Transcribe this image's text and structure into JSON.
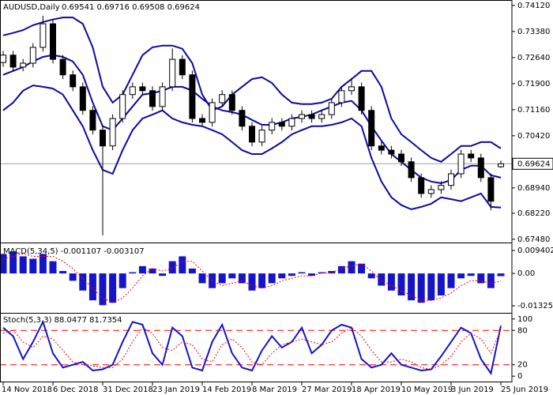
{
  "chart_data": [
    {
      "type": "candlestick",
      "title": "AUDUSD,Daily",
      "subtitle": "0.69541 0.69716 0.69508 0.69624",
      "categories": [
        "14 Nov 2018",
        null,
        null,
        null,
        null,
        "6 Dec 2018",
        null,
        null,
        null,
        null,
        "31 Dec 2018",
        null,
        null,
        null,
        null,
        "23 Jan 2019",
        null,
        null,
        null,
        null,
        "14 Feb 2019",
        null,
        null,
        null,
        null,
        "8 Mar 2019",
        null,
        null,
        null,
        null,
        "27 Mar 2019",
        null,
        null,
        null,
        null,
        "18 Apr 2019",
        null,
        null,
        null,
        null,
        "10 May 2019",
        null,
        null,
        null,
        null,
        "3 Jun 2019",
        null,
        null,
        null,
        null,
        "25 Jun 2019"
      ],
      "open": [
        0.725,
        0.7271,
        0.7237,
        0.7248,
        0.7293,
        0.736,
        0.7259,
        0.7215,
        0.7181,
        0.7114,
        0.7058,
        0.7013,
        0.7091,
        0.7159,
        0.7181,
        0.717,
        0.7125,
        0.7181,
        0.7259,
        0.7215,
        0.7091,
        0.708,
        0.7136,
        0.7159,
        0.7114,
        0.7069,
        0.7024,
        0.7058,
        0.708,
        0.7069,
        0.7091,
        0.7102,
        0.7091,
        0.7102,
        0.7136,
        0.717,
        0.7181,
        0.7114,
        0.7013,
        0.7001,
        0.699,
        0.6968,
        0.6923,
        0.6878,
        0.6889,
        0.6901,
        0.6934,
        0.699,
        0.6979,
        0.6923,
        0.69541
      ],
      "high": [
        0.7283,
        0.7283,
        0.726,
        0.7305,
        0.7383,
        0.7372,
        0.7271,
        0.7227,
        0.7193,
        0.7126,
        0.707,
        0.7103,
        0.7171,
        0.7193,
        0.7193,
        0.7182,
        0.7193,
        0.729,
        0.7271,
        0.7227,
        0.7103,
        0.7148,
        0.7171,
        0.7171,
        0.7126,
        0.7081,
        0.707,
        0.7092,
        0.7092,
        0.7103,
        0.7114,
        0.7114,
        0.7114,
        0.7148,
        0.7182,
        0.7205,
        0.7193,
        0.7126,
        0.7025,
        0.7013,
        0.7002,
        0.698,
        0.6935,
        0.6901,
        0.6913,
        0.6946,
        0.7002,
        0.7002,
        0.6991,
        0.6935,
        0.69716
      ],
      "low": [
        0.7238,
        0.7225,
        0.7225,
        0.7236,
        0.7281,
        0.7247,
        0.7203,
        0.7169,
        0.7102,
        0.7046,
        0.6759,
        0.7001,
        0.7079,
        0.7147,
        0.7158,
        0.7113,
        0.7113,
        0.7169,
        0.7203,
        0.7079,
        0.7068,
        0.7068,
        0.7124,
        0.7102,
        0.7057,
        0.7012,
        0.7012,
        0.7046,
        0.7057,
        0.7057,
        0.7079,
        0.7079,
        0.7079,
        0.709,
        0.7124,
        0.7158,
        0.7102,
        0.7001,
        0.6989,
        0.6978,
        0.6956,
        0.6911,
        0.6866,
        0.6866,
        0.6877,
        0.6889,
        0.6922,
        0.6967,
        0.6911,
        0.683,
        0.69508
      ],
      "close": [
        0.7271,
        0.7237,
        0.7248,
        0.7293,
        0.736,
        0.7259,
        0.7215,
        0.7181,
        0.7114,
        0.7058,
        0.7013,
        0.7091,
        0.7159,
        0.7181,
        0.717,
        0.7125,
        0.7181,
        0.7259,
        0.7215,
        0.7091,
        0.708,
        0.7136,
        0.7159,
        0.7114,
        0.7069,
        0.7024,
        0.7058,
        0.708,
        0.7069,
        0.7091,
        0.7102,
        0.7091,
        0.7102,
        0.7136,
        0.717,
        0.7181,
        0.7114,
        0.7013,
        0.7001,
        0.699,
        0.6968,
        0.6923,
        0.6878,
        0.6889,
        0.6901,
        0.6934,
        0.699,
        0.6979,
        0.6923,
        0.6856,
        0.69624
      ],
      "up_color": "#ffffff",
      "down_color": "#000000",
      "series": [
        {
          "color": "#0a0a9e",
          "values": [
            0.7327,
            0.7334,
            0.7342,
            0.7356,
            0.7365,
            0.7372,
            0.7378,
            0.7378,
            0.736,
            0.7293,
            0.7181,
            0.7136,
            0.7159,
            0.7215,
            0.7271,
            0.7293,
            0.7298,
            0.7298,
            0.7289,
            0.7248,
            0.7159,
            0.7114,
            0.7125,
            0.7159,
            0.7181,
            0.7203,
            0.7208,
            0.7192,
            0.7159,
            0.7136,
            0.7132,
            0.7132,
            0.7136,
            0.7147,
            0.7181,
            0.7203,
            0.7226,
            0.7226,
            0.7181,
            0.7091,
            0.7046,
            0.7024,
            0.7001,
            0.6979,
            0.6968,
            0.699,
            0.7013,
            0.7013,
            0.7024,
            0.7024,
            0.7006
          ]
        },
        {
          "color": "#0a0a9e",
          "values": [
            0.7215,
            0.7226,
            0.7237,
            0.7253,
            0.7266,
            0.7271,
            0.7266,
            0.7253,
            0.7215,
            0.7136,
            0.7069,
            0.7058,
            0.7091,
            0.7125,
            0.7159,
            0.7163,
            0.717,
            0.7181,
            0.7181,
            0.717,
            0.7147,
            0.7125,
            0.7114,
            0.7109,
            0.7102,
            0.7087,
            0.7073,
            0.7073,
            0.708,
            0.7091,
            0.7096,
            0.7102,
            0.7114,
            0.7125,
            0.7136,
            0.7141,
            0.7114,
            0.7069,
            0.7028,
            0.699,
            0.6968,
            0.6945,
            0.6923,
            0.6912,
            0.6907,
            0.6916,
            0.6945,
            0.6957,
            0.6957,
            0.693,
            0.6923
          ]
        },
        {
          "color": "#0a0a9e",
          "values": [
            0.7114,
            0.7136,
            0.717,
            0.7185,
            0.7181,
            0.7176,
            0.7159,
            0.7114,
            0.7069,
            0.7001,
            0.6945,
            0.6934,
            0.7001,
            0.7058,
            0.7091,
            0.7102,
            0.7114,
            0.7091,
            0.708,
            0.7073,
            0.7069,
            0.7058,
            0.7046,
            0.7024,
            0.7001,
            0.699,
            0.699,
            0.7006,
            0.7024,
            0.7046,
            0.7058,
            0.7069,
            0.7069,
            0.7073,
            0.708,
            0.7091,
            0.7069,
            0.6979,
            0.6912,
            0.6867,
            0.6845,
            0.6833,
            0.684,
            0.6849,
            0.6867,
            0.6862,
            0.6856,
            0.6867,
            0.6878,
            0.684,
            0.6838
          ]
        }
      ],
      "ylim": [
        0.6741,
        0.7423
      ],
      "yticks": [
        {
          "value": 0.7412,
          "label": "0.74120"
        },
        {
          "value": 0.7338,
          "label": "0.73380"
        },
        {
          "value": 0.7264,
          "label": "0.72640"
        },
        {
          "value": 0.719,
          "label": "0.71900"
        },
        {
          "value": 0.7116,
          "label": "0.71160"
        },
        {
          "value": 0.7042,
          "label": "0.70420"
        },
        {
          "value": 0.6894,
          "label": "0.68940"
        },
        {
          "value": 0.6822,
          "label": "0.68220"
        },
        {
          "value": 0.6748,
          "label": "0.67480"
        }
      ],
      "last_price": {
        "value": 0.69624,
        "label": "0.69624"
      }
    },
    {
      "type": "bar",
      "title": "MACD(5,34,5) -0.001107 -0.003107",
      "color": "#1414c8",
      "values": [
        0.008,
        0.009,
        0.007,
        0.006,
        0.008,
        0.005,
        0.001,
        -0.003,
        -0.007,
        -0.011,
        -0.013,
        -0.012,
        -0.006,
        0.0005,
        0.003,
        0.002,
        -0.001,
        0.005,
        0.007,
        0.002,
        -0.004,
        -0.006,
        -0.004,
        -0.002,
        -0.004,
        -0.007,
        -0.006,
        -0.004,
        -0.002,
        -0.001,
        0.0005,
        -0.001,
        0.0005,
        0.001,
        0.003,
        0.005,
        0.004,
        -0.002,
        -0.005,
        -0.007,
        -0.009,
        -0.011,
        -0.012,
        -0.011,
        -0.009,
        -0.006,
        -0.002,
        -0.001,
        -0.004,
        -0.006,
        -0.001107
      ],
      "series": [
        {
          "color": "#ff0000",
          "values": [
            0.006,
            0.007,
            0.008,
            0.007,
            0.007,
            0.007,
            0.005,
            0.002,
            -0.002,
            -0.006,
            -0.01,
            -0.012,
            -0.01,
            -0.006,
            -0.001,
            0.002,
            0.001,
            0.002,
            0.005,
            0.005,
            0.001,
            -0.003,
            -0.005,
            -0.004,
            -0.003,
            -0.005,
            -0.006,
            -0.005,
            -0.003,
            -0.002,
            -0.001,
            -0.001,
            0.0002,
            0.0003,
            0.002,
            0.003,
            0.004,
            0.001,
            -0.003,
            -0.005,
            -0.007,
            -0.009,
            -0.011,
            -0.011,
            -0.01,
            -0.008,
            -0.005,
            -0.003,
            -0.003,
            -0.004,
            -0.003107
          ]
        }
      ],
      "ylim": [
        -0.0158,
        0.012
      ],
      "yticks": [
        0.009402,
        {
          "value": 0,
          "label": "0.00"
        },
        -0.013254
      ]
    },
    {
      "type": "line",
      "title": "Stoch(5,3,3) 88.0477 81.7354",
      "series": [
        {
          "color": "#1414c8",
          "values": [
            85,
            70,
            30,
            60,
            95,
            40,
            15,
            20,
            25,
            10,
            12,
            20,
            60,
            95,
            90,
            40,
            20,
            85,
            70,
            15,
            10,
            60,
            90,
            40,
            15,
            10,
            45,
            70,
            50,
            60,
            85,
            40,
            55,
            80,
            90,
            85,
            30,
            15,
            20,
            40,
            20,
            15,
            10,
            12,
            35,
            60,
            85,
            75,
            30,
            5,
            88.0477
          ]
        },
        {
          "color": "#ff0000",
          "dash": true,
          "values": [
            75,
            80,
            60,
            50,
            70,
            65,
            45,
            25,
            20,
            18,
            15,
            15,
            30,
            60,
            85,
            75,
            50,
            45,
            60,
            55,
            30,
            25,
            55,
            65,
            50,
            25,
            20,
            40,
            55,
            60,
            65,
            60,
            55,
            60,
            75,
            85,
            70,
            45,
            25,
            25,
            30,
            25,
            15,
            12,
            20,
            35,
            60,
            75,
            65,
            40,
            81.7354
          ]
        }
      ],
      "levels": [
        80,
        20
      ],
      "level_color": "#ff0000",
      "ylim": [
        -8,
        108
      ],
      "yticks": [
        100,
        80,
        20,
        0
      ]
    }
  ]
}
